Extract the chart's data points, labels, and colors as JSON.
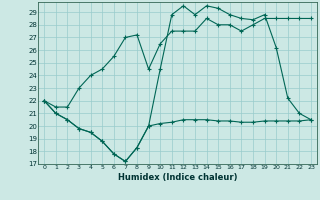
{
  "xlabel": "Humidex (Indice chaleur)",
  "background_color": "#cce8e4",
  "grid_color": "#99cccc",
  "line_color": "#006655",
  "ylim": [
    17,
    29.8
  ],
  "xlim": [
    -0.5,
    23.5
  ],
  "yticks": [
    17,
    18,
    19,
    20,
    21,
    22,
    23,
    24,
    25,
    26,
    27,
    28,
    29
  ],
  "xticks": [
    0,
    1,
    2,
    3,
    4,
    5,
    6,
    7,
    8,
    9,
    10,
    11,
    12,
    13,
    14,
    15,
    16,
    17,
    18,
    19,
    20,
    21,
    22,
    23
  ],
  "line_min_x": [
    0,
    1,
    2,
    3,
    4,
    5,
    6,
    7,
    8,
    9,
    10,
    11,
    12,
    13,
    14,
    15,
    16,
    17,
    18,
    19,
    20,
    21,
    22,
    23
  ],
  "line_min_y": [
    22.0,
    21.0,
    20.5,
    19.8,
    19.5,
    18.8,
    17.8,
    17.2,
    18.3,
    20.0,
    20.2,
    20.3,
    20.5,
    20.5,
    20.5,
    20.4,
    20.4,
    20.3,
    20.3,
    20.4,
    20.4,
    20.4,
    20.4,
    20.5
  ],
  "line_max_x": [
    0,
    1,
    2,
    3,
    4,
    5,
    6,
    7,
    8,
    9,
    10,
    11,
    12,
    13,
    14,
    15,
    16,
    17,
    18,
    19,
    20,
    21,
    22,
    23
  ],
  "line_max_y": [
    22.0,
    21.0,
    20.5,
    19.8,
    19.5,
    18.8,
    17.8,
    17.2,
    18.3,
    20.0,
    24.5,
    28.8,
    29.5,
    28.8,
    29.5,
    29.3,
    28.8,
    28.5,
    28.4,
    28.8,
    26.2,
    22.2,
    21.0,
    20.5
  ],
  "line_mean_x": [
    0,
    1,
    2,
    3,
    4,
    5,
    6,
    7,
    8,
    9,
    10,
    11,
    12,
    13,
    14,
    15,
    16,
    17,
    18,
    19,
    20,
    21,
    22,
    23
  ],
  "line_mean_y": [
    22.0,
    21.5,
    21.5,
    23.0,
    24.0,
    24.5,
    25.5,
    27.0,
    27.2,
    24.5,
    26.5,
    27.5,
    27.5,
    27.5,
    28.5,
    28.0,
    28.0,
    27.5,
    28.0,
    28.5,
    28.5,
    28.5,
    28.5,
    28.5
  ]
}
